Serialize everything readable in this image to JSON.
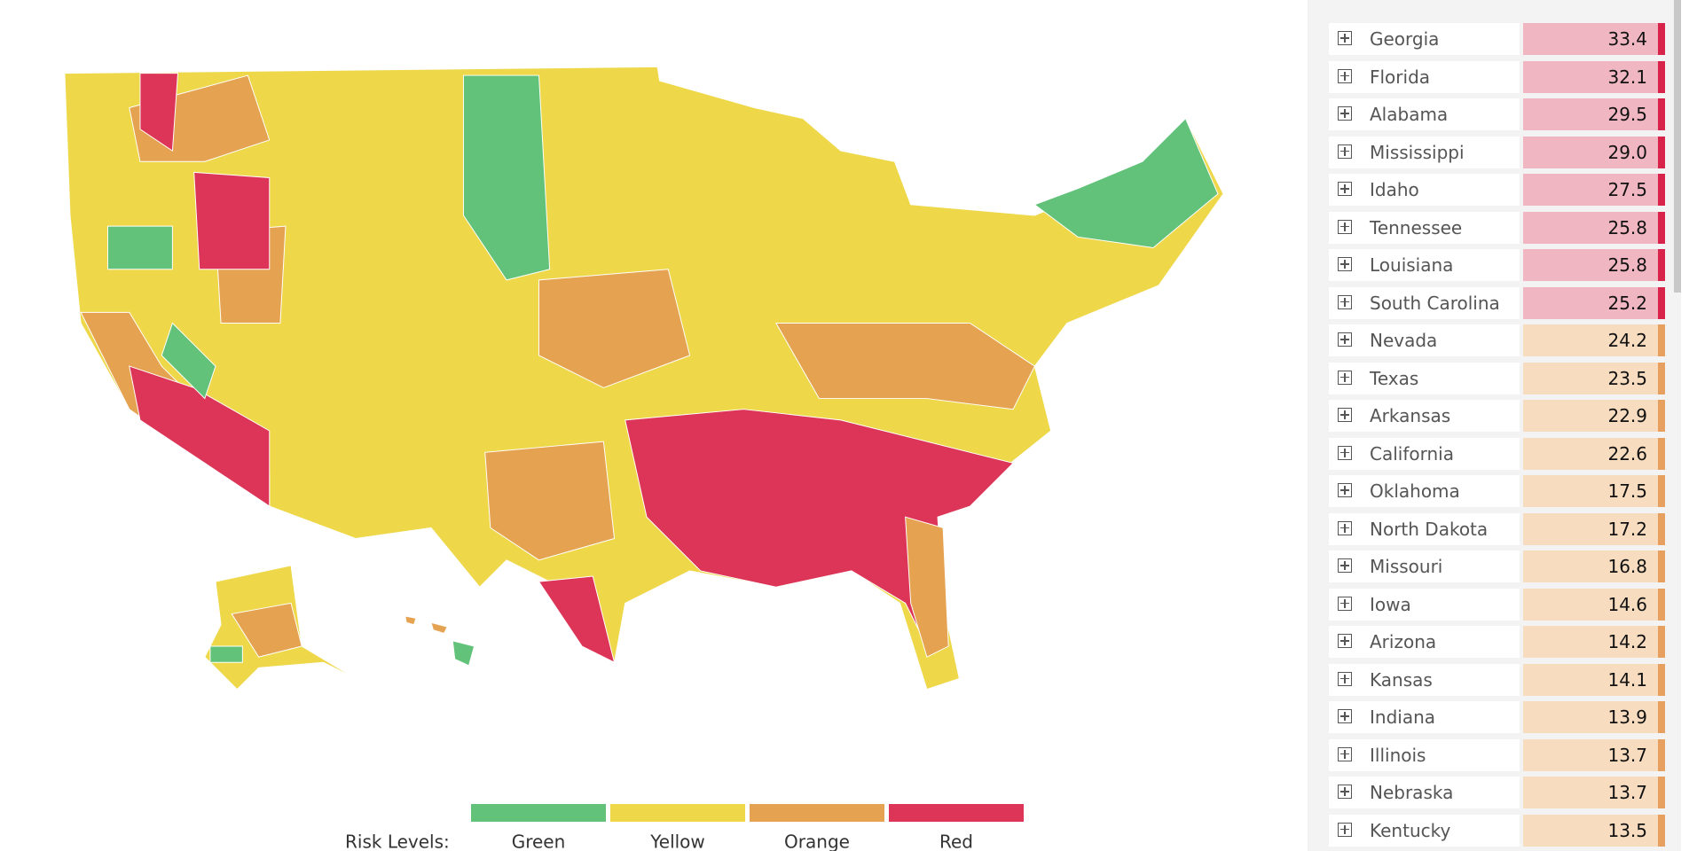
{
  "legend": {
    "label": "Risk Levels:",
    "items": [
      {
        "name": "Green",
        "color": "#62c27a"
      },
      {
        "name": "Yellow",
        "color": "#eed84a"
      },
      {
        "name": "Orange",
        "color": "#e5a352"
      },
      {
        "name": "Red",
        "color": "#dc3557"
      }
    ]
  },
  "table": {
    "rows": [
      {
        "name": "Georgia",
        "value": "33.4",
        "color": "#f0b7c2",
        "accent": "#d8234a"
      },
      {
        "name": "Florida",
        "value": "32.1",
        "color": "#f0b7c2",
        "accent": "#d8234a"
      },
      {
        "name": "Alabama",
        "value": "29.5",
        "color": "#f0b7c2",
        "accent": "#d8234a"
      },
      {
        "name": "Mississippi",
        "value": "29.0",
        "color": "#f0b7c2",
        "accent": "#d8234a"
      },
      {
        "name": "Idaho",
        "value": "27.5",
        "color": "#f0b7c2",
        "accent": "#d8234a"
      },
      {
        "name": "Tennessee",
        "value": "25.8",
        "color": "#f0b7c2",
        "accent": "#d8234a"
      },
      {
        "name": "Louisiana",
        "value": "25.8",
        "color": "#f0b7c2",
        "accent": "#d8234a"
      },
      {
        "name": "South Carolina",
        "value": "25.2",
        "color": "#f0b7c2",
        "accent": "#d8234a"
      },
      {
        "name": "Nevada",
        "value": "24.2",
        "color": "#f7dcc0",
        "accent": "#e8a060"
      },
      {
        "name": "Texas",
        "value": "23.5",
        "color": "#f7dcc0",
        "accent": "#e8a060"
      },
      {
        "name": "Arkansas",
        "value": "22.9",
        "color": "#f7dcc0",
        "accent": "#e8a060"
      },
      {
        "name": "California",
        "value": "22.6",
        "color": "#f7dcc0",
        "accent": "#e8a060"
      },
      {
        "name": "Oklahoma",
        "value": "17.5",
        "color": "#f7dcc0",
        "accent": "#e8a060"
      },
      {
        "name": "North Dakota",
        "value": "17.2",
        "color": "#f7dcc0",
        "accent": "#e8a060"
      },
      {
        "name": "Missouri",
        "value": "16.8",
        "color": "#f7dcc0",
        "accent": "#e8a060"
      },
      {
        "name": "Iowa",
        "value": "14.6",
        "color": "#f7dcc0",
        "accent": "#e8a060"
      },
      {
        "name": "Arizona",
        "value": "14.2",
        "color": "#f7dcc0",
        "accent": "#e8a060"
      },
      {
        "name": "Kansas",
        "value": "14.1",
        "color": "#f7dcc0",
        "accent": "#e8a060"
      },
      {
        "name": "Indiana",
        "value": "13.9",
        "color": "#f7dcc0",
        "accent": "#e8a060"
      },
      {
        "name": "Illinois",
        "value": "13.7",
        "color": "#f7dcc0",
        "accent": "#e8a060"
      },
      {
        "name": "Nebraska",
        "value": "13.7",
        "color": "#f7dcc0",
        "accent": "#e8a060"
      },
      {
        "name": "Kentucky",
        "value": "13.5",
        "color": "#f7dcc0",
        "accent": "#e8a060"
      }
    ]
  }
}
